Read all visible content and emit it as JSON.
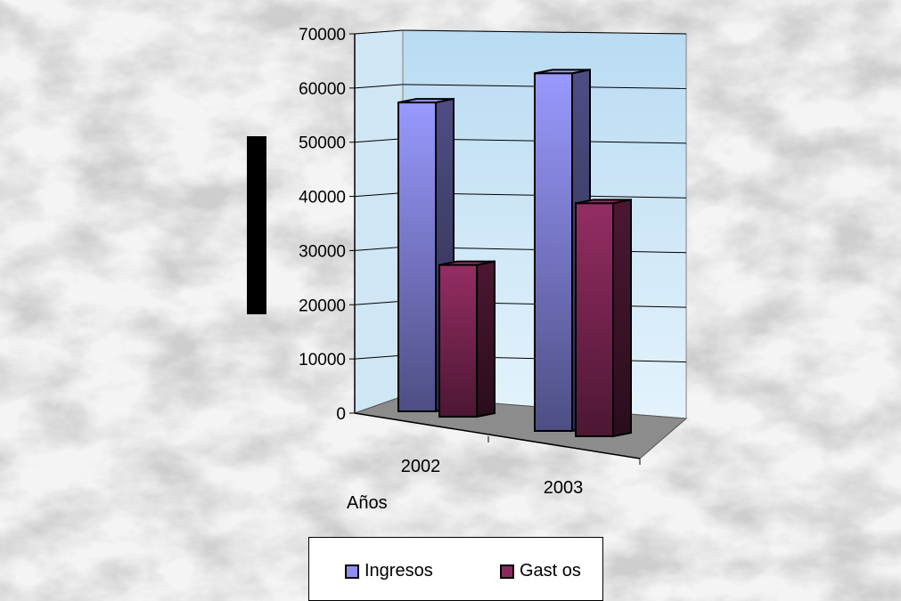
{
  "chart_data": {
    "type": "bar",
    "categories": [
      "2002",
      "2003"
    ],
    "series": [
      {
        "name": "Ingresos",
        "values": [
          57000,
          66000
        ],
        "color": "#8e8ef0"
      },
      {
        "name": "Gastos",
        "values": [
          28000,
          43000
        ],
        "color": "#8a2a5c"
      }
    ],
    "xlabel": "Años",
    "ylabel": "",
    "ylim": [
      0,
      70000
    ],
    "yticks": [
      "0",
      "10000",
      "20000",
      "30000",
      "40000",
      "50000",
      "60000",
      "70000"
    ],
    "grid": true,
    "legend_position": "bottom"
  },
  "legend": {
    "items": [
      {
        "label": "Ingresos",
        "color": "#8e8ef0"
      },
      {
        "label": "Gast os",
        "color": "#8a2a5c"
      }
    ]
  },
  "axis_title": "Años"
}
